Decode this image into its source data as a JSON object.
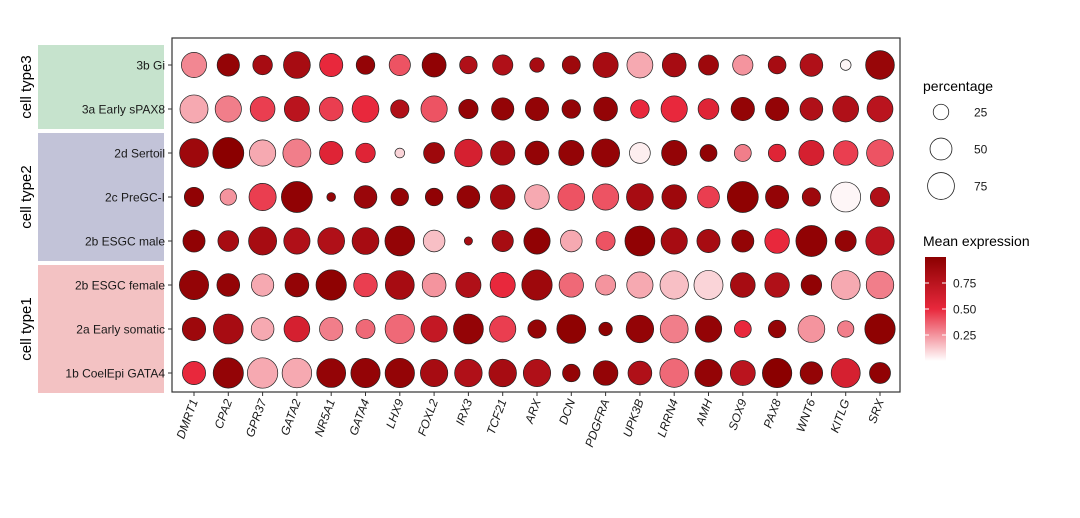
{
  "chart_data": {
    "type": "dotplot",
    "title": "",
    "xlabel": "",
    "ylabel": "",
    "genes": [
      "DMRT1",
      "CPA2",
      "GPR37",
      "GATA2",
      "NR5A1",
      "GATA4",
      "LHX9",
      "FOXL2",
      "IRX3",
      "TCF21",
      "ARX",
      "DCN",
      "PDGFRA",
      "UPK3B",
      "LRRN4",
      "AMH",
      "SOX9",
      "PAX8",
      "WNT6",
      "KITLG",
      "SRX"
    ],
    "cell_types": [
      "3b Gi",
      "3a Early sPAX8",
      "2d Sertoil",
      "2c PreGC-I",
      "2b ESGC male",
      "2b ESGC female",
      "2a Early somatic",
      "1b CoelEpi GATA4"
    ],
    "groups": [
      {
        "label": "cell type3",
        "color": "#c6e3cd",
        "rows": [
          "3b Gi",
          "3a Early sPAX8"
        ]
      },
      {
        "label": "cell type2",
        "color": "#c2c3d8",
        "rows": [
          "2d Sertoil",
          "2c PreGC-I",
          "2b ESGC male"
        ]
      },
      {
        "label": "cell type1",
        "color": "#f3c2c3",
        "rows": [
          "2b ESGC female",
          "2a Early somatic",
          "1b CoelEpi GATA4"
        ]
      }
    ],
    "percentage": [
      [
        66,
        52,
        40,
        75,
        56,
        36,
        47,
        60,
        32,
        43,
        22,
        34,
        66,
        70,
        59,
        42,
        43,
        33,
        54,
        12,
        86
      ],
      [
        82,
        72,
        64,
        66,
        59,
        75,
        35,
        72,
        39,
        52,
        57,
        36,
        59,
        36,
        72,
        45,
        57,
        57,
        54,
        70,
        70
      ],
      [
        86,
        100,
        72,
        82,
        57,
        40,
        10,
        46,
        79,
        62,
        59,
        66,
        82,
        45,
        66,
        30,
        30,
        32,
        66,
        63,
        75
      ],
      [
        39,
        28,
        77,
        100,
        8,
        54,
        32,
        32,
        54,
        63,
        63,
        75,
        72,
        75,
        63,
        50,
        100,
        56,
        35,
        93,
        39
      ],
      [
        51,
        45,
        82,
        72,
        75,
        75,
        92,
        49,
        7,
        47,
        72,
        49,
        38,
        93,
        72,
        56,
        51,
        63,
        100,
        46,
        84
      ],
      [
        89,
        54,
        52,
        59,
        96,
        58,
        87,
        59,
        66,
        66,
        96,
        62,
        42,
        72,
        84,
        88,
        64,
        63,
        44,
        87,
        79
      ],
      [
        57,
        93,
        54,
        69,
        57,
        38,
        90,
        72,
        93,
        72,
        35,
        87,
        19,
        79,
        81,
        73,
        30,
        32,
        75,
        28,
        96
      ],
      [
        56,
        95,
        96,
        91,
        87,
        89,
        90,
        78,
        79,
        79,
        78,
        32,
        63,
        59,
        86,
        77,
        65,
        90,
        53,
        88,
        46
      ]
    ],
    "expression": [
      [
        0.28,
        0.95,
        0.85,
        0.85,
        0.5,
        0.95,
        0.4,
        0.97,
        0.8,
        0.8,
        0.85,
        0.9,
        0.85,
        0.2,
        0.85,
        0.9,
        0.25,
        0.85,
        0.8,
        0.02,
        0.93
      ],
      [
        0.2,
        0.3,
        0.45,
        0.75,
        0.45,
        0.5,
        0.8,
        0.4,
        0.95,
        0.95,
        0.95,
        0.95,
        0.95,
        0.5,
        0.5,
        0.55,
        0.95,
        0.95,
        0.8,
        0.8,
        0.75
      ],
      [
        0.9,
        1.0,
        0.2,
        0.3,
        0.55,
        0.55,
        0.1,
        0.9,
        0.6,
        0.85,
        0.95,
        0.95,
        0.95,
        0.04,
        0.95,
        0.97,
        0.3,
        0.55,
        0.6,
        0.45,
        0.4
      ],
      [
        0.97,
        0.25,
        0.45,
        0.97,
        0.95,
        0.92,
        0.95,
        0.97,
        0.95,
        0.88,
        0.2,
        0.4,
        0.4,
        0.85,
        0.9,
        0.45,
        0.98,
        0.95,
        0.9,
        0.02,
        0.8
      ],
      [
        0.97,
        0.85,
        0.85,
        0.8,
        0.8,
        0.85,
        0.95,
        0.15,
        0.85,
        0.85,
        0.97,
        0.2,
        0.4,
        0.97,
        0.85,
        0.85,
        0.95,
        0.5,
        0.97,
        0.95,
        0.75
      ],
      [
        0.95,
        0.95,
        0.2,
        0.95,
        0.98,
        0.45,
        0.85,
        0.25,
        0.8,
        0.5,
        0.9,
        0.35,
        0.25,
        0.2,
        0.15,
        0.1,
        0.85,
        0.8,
        0.97,
        0.2,
        0.3
      ],
      [
        0.9,
        0.85,
        0.2,
        0.6,
        0.3,
        0.35,
        0.35,
        0.7,
        0.95,
        0.45,
        0.95,
        0.98,
        0.98,
        0.95,
        0.3,
        0.95,
        0.5,
        0.95,
        0.25,
        0.3,
        0.98
      ],
      [
        0.5,
        0.95,
        0.2,
        0.2,
        0.95,
        0.95,
        0.95,
        0.85,
        0.8,
        0.85,
        0.8,
        0.95,
        0.95,
        0.8,
        0.35,
        0.95,
        0.75,
        1.0,
        0.95,
        0.6,
        0.97
      ]
    ],
    "legend": {
      "size_title": "percentage",
      "size_entries": [
        25,
        50,
        75
      ],
      "color_title": "Mean expression",
      "color_ticks": [
        "0.75",
        "0.50",
        "0.25"
      ],
      "color_tick_values": [
        0.75,
        0.5,
        0.25
      ],
      "color_range": [
        0,
        1
      ],
      "color_low": "#ffffff",
      "color_mid": "#e8283c",
      "color_high": "#8b0000"
    }
  }
}
